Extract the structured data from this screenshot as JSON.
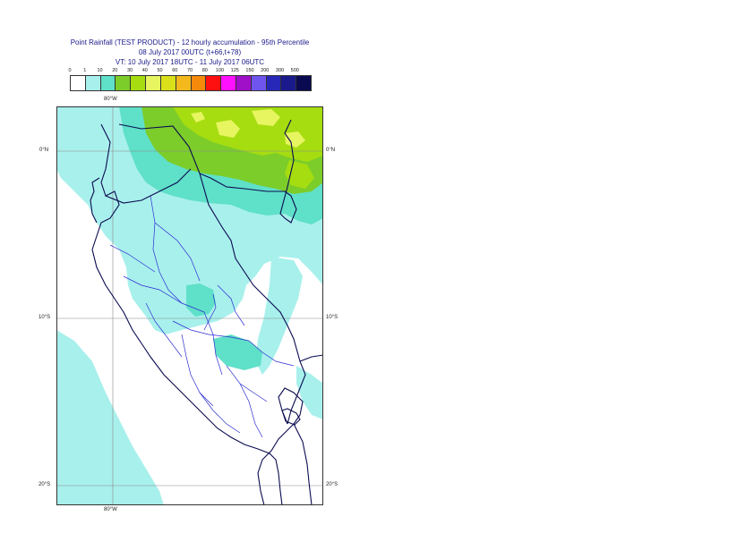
{
  "title": {
    "line1": "Point Rainfall (TEST PRODUCT) - 12 hourly accumulation - 95th Percentile",
    "line2": "08 July 2017 00UTC (t+66,t+78)",
    "line3": "VT: 10 July 2017 18UTC - 11 July 2017 06UTC"
  },
  "legend": {
    "ticks": [
      "0",
      "1",
      "10",
      "20",
      "30",
      "40",
      "50",
      "60",
      "70",
      "80",
      "100",
      "125",
      "150",
      "200",
      "300",
      "500"
    ],
    "colors": [
      "#ffffff",
      "#a8f0ec",
      "#5fe0c8",
      "#7ccd2a",
      "#a6dd10",
      "#e6f560",
      "#d9e01a",
      "#f2b81c",
      "#f58a0a",
      "#ff1010",
      "#ff10ff",
      "#a010c8",
      "#6f55ee",
      "#2828b8",
      "#1a1a8c",
      "#0a0a50"
    ]
  },
  "map": {
    "colors": {
      "light_cyan": "#a8f0ec",
      "teal": "#5fe0c8",
      "green": "#7ccd2a",
      "yellow_green": "#a6dd10",
      "yellow": "#e6f560",
      "coast": "#0a0a50",
      "admin": "#2d2dd2",
      "grid": "#888888"
    },
    "labels": {
      "lon_top": "80°W",
      "lon_bottom": "80°W",
      "lat_0_left": "0°N",
      "lat_0_right": "0°N",
      "lat_10_left": "10°S",
      "lat_10_right": "10°S",
      "lat_20_left": "20°S",
      "lat_20_right": "20°S"
    }
  }
}
